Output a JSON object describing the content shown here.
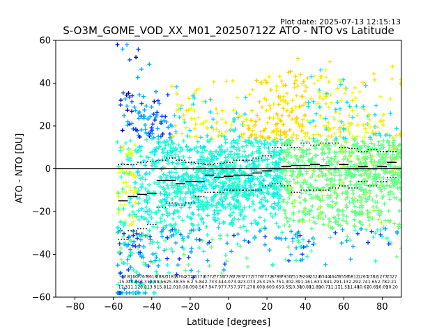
{
  "chart_data": {
    "type": "scatter",
    "title": "S-O3M_GOME_VOD_XX_M01_20250712Z ATO - NTO vs Latitude",
    "subtitle": "Plot date: 2025-07-13 12:15:13",
    "xlabel": "Latitude [degrees]",
    "ylabel": "ATO - NTO [DU]",
    "xlim": [
      -90,
      90
    ],
    "ylim": [
      -60,
      60
    ],
    "xticks": [
      -80,
      -60,
      -40,
      -20,
      0,
      20,
      40,
      60,
      80
    ],
    "yticks": [
      -60,
      -40,
      -20,
      0,
      20,
      40,
      60
    ],
    "marker": "+",
    "grid": false,
    "legend": "none",
    "zero_line": 0,
    "bin_latitudes": [
      -55,
      -50,
      -45,
      -40,
      -35,
      -30,
      -25,
      -20,
      -15,
      -10,
      -5,
      0,
      5,
      10,
      15,
      20,
      25,
      30,
      35,
      40,
      45,
      50,
      55,
      60,
      65,
      70,
      75,
      80,
      85
    ],
    "bin_mean": [
      -15,
      -13,
      -12,
      -11.5,
      -5.5,
      -5.5,
      -7,
      -6,
      -6,
      -3,
      -4,
      -3.5,
      -3,
      -3,
      -2,
      -1,
      0,
      1,
      1.5,
      1.5,
      2,
      1.5,
      0,
      2,
      0,
      1,
      0,
      1,
      3
    ],
    "bin_upper": [
      2,
      2,
      3,
      3.5,
      4,
      5,
      4,
      3,
      2.5,
      2,
      2.5,
      3,
      4,
      4,
      5,
      6,
      10,
      11,
      10,
      12,
      11,
      12,
      12,
      10,
      9.5,
      8,
      9,
      8,
      8
    ],
    "bin_lower": [
      -33,
      -29,
      -28,
      -26,
      -18,
      -16,
      -17,
      -16,
      -13,
      -11,
      -11,
      -10,
      -10,
      -10,
      -10,
      -8,
      -7,
      -8,
      -11,
      -10,
      -10,
      -10,
      -9,
      -8,
      -9,
      -6,
      -8,
      -6,
      -4
    ],
    "bin_stats": [
      [
        "-17",
        "-15.3",
        "17.3"
      ],
      [
        "8160",
        "15.8",
        "11.1"
      ],
      [
        "7767",
        "13.3",
        "28.8"
      ],
      [
        "8618",
        "12.9",
        "13.9"
      ],
      [
        "2882",
        "8.56",
        "15.8"
      ],
      [
        "3181",
        "25.3",
        "12.0"
      ],
      [
        "8764",
        "8.55",
        "10.0"
      ],
      [
        "2376",
        "6.2",
        "8.09"
      ],
      [
        "6772",
        "5.84",
        "8.56"
      ],
      [
        "6772",
        "2.73",
        "7.94"
      ],
      [
        "7736",
        "3.44",
        "7.97"
      ],
      [
        "7776",
        "4.07",
        "7.75"
      ],
      [
        "7787",
        "3.92",
        "7.97"
      ],
      [
        "7772",
        "3.07",
        "7.27"
      ],
      [
        "7776",
        "3.25",
        "8.60"
      ],
      [
        "7772",
        "3.25",
        "8.60"
      ],
      [
        "8789",
        "5.75",
        "9.65"
      ],
      [
        "7930",
        "1.30",
        "9.55"
      ],
      [
        "7517",
        "2.39",
        "10.38"
      ],
      [
        "9208",
        "1.16",
        "10.88"
      ],
      [
        "2324",
        "1.63",
        "11.89"
      ],
      [
        "6544",
        "1.94",
        "10.71"
      ],
      [
        "4645",
        "1.29",
        "11.17"
      ],
      [
        "6556",
        "1.13",
        "11.53"
      ],
      [
        "5812",
        "2.29",
        "11.48"
      ],
      [
        "1263",
        "2.74",
        "10.67"
      ],
      [
        "2382",
        "1.65",
        "10.69"
      ],
      [
        "1277",
        "2.78",
        "10.09"
      ],
      [
        "2327",
        "2.21",
        "10.20"
      ]
    ],
    "colors": [
      "#0000cd",
      "#0a3cff",
      "#00aaff",
      "#00e5ff",
      "#20ffd0",
      "#66ff88",
      "#aaff44",
      "#e6ff20",
      "#ffe600",
      "#ffcc00"
    ],
    "point_latitude_range": [
      -58,
      90
    ],
    "point_value_range": [
      -58,
      58
    ]
  }
}
